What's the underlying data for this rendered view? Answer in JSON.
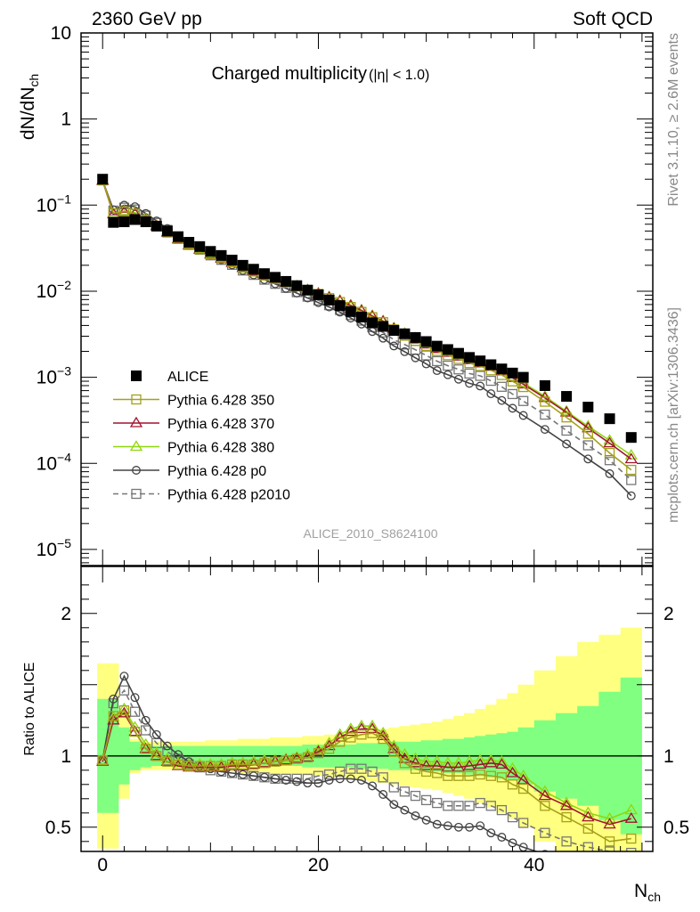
{
  "header": {
    "left": "2360 GeV pp",
    "right": "Soft QCD",
    "side_top": "Rivet 3.1.10, ≥ 2.6M events",
    "side_bottom": "mcplots.cern.ch [arXiv:1306.3436]",
    "analysis_id": "ALICE_2010_S8624100"
  },
  "main_plot": {
    "title": "Charged multiplicity",
    "title_cut": "(|η| < 1.0)",
    "ylabel": "dN/dN",
    "ylabel_sub": "ch",
    "yscale": "log",
    "ylim": [
      6.5e-06,
      10
    ],
    "yticks": [
      {
        "base": "10",
        "exp": "1",
        "plain": "10",
        "value": 10
      },
      {
        "base": "1",
        "exp": "",
        "plain": "1",
        "value": 1
      },
      {
        "base": "10",
        "exp": "−1",
        "plain": "",
        "value": 0.1
      },
      {
        "base": "10",
        "exp": "−2",
        "plain": "",
        "value": 0.01
      },
      {
        "base": "10",
        "exp": "−3",
        "plain": "",
        "value": 0.001
      },
      {
        "base": "10",
        "exp": "−4",
        "plain": "",
        "value": 0.0001
      },
      {
        "base": "10",
        "exp": "−5",
        "plain": "",
        "value": 1e-05
      }
    ]
  },
  "ratio_plot": {
    "ylabel": "Ratio to ALICE",
    "ylim": [
      0.33,
      2.33
    ],
    "yticks": [
      {
        "label": "0.5",
        "value": 0.5
      },
      {
        "label": "1",
        "value": 1
      },
      {
        "label": "2",
        "value": 2
      }
    ]
  },
  "xaxis": {
    "label": "N",
    "label_sub": "ch",
    "xlim": [
      -2,
      51
    ],
    "ticks": [
      {
        "label": "0",
        "value": 0
      },
      {
        "label": "20",
        "value": 20
      },
      {
        "label": "40",
        "value": 40
      }
    ]
  },
  "legend": {
    "placement": "lower-left",
    "entries": [
      {
        "label": "ALICE",
        "key": "alice"
      },
      {
        "label": "Pythia 6.428 350",
        "key": "p350"
      },
      {
        "label": "Pythia 6.428 370",
        "key": "p370"
      },
      {
        "label": "Pythia 6.428 380",
        "key": "p380"
      },
      {
        "label": "Pythia 6.428 p0",
        "key": "p0"
      },
      {
        "label": "Pythia 6.428 p2010",
        "key": "p2010"
      }
    ]
  },
  "chart_data": {
    "type": "scatter",
    "x": [
      0,
      1,
      2,
      3,
      4,
      5,
      6,
      7,
      8,
      9,
      10,
      11,
      12,
      13,
      14,
      15,
      16,
      17,
      18,
      19,
      20,
      21,
      22,
      23,
      24,
      25,
      26,
      27,
      28,
      29,
      30,
      31,
      32,
      33,
      34,
      35,
      36,
      37,
      38,
      39,
      41,
      43,
      45,
      47,
      49
    ],
    "band_edges": [
      -0.5,
      0.5,
      1.5,
      2.5,
      3.5,
      4.5,
      5.5,
      6.5,
      7.5,
      8.5,
      9.5,
      10.5,
      11.5,
      12.5,
      13.5,
      14.5,
      15.5,
      16.5,
      17.5,
      18.5,
      19.5,
      20.5,
      21.5,
      22.5,
      23.5,
      24.5,
      25.5,
      26.5,
      27.5,
      28.5,
      29.5,
      30.5,
      31.5,
      32.5,
      33.5,
      34.5,
      35.5,
      36.5,
      37.5,
      38.5,
      40,
      42,
      44,
      46,
      48,
      50
    ],
    "alice": [
      0.2,
      0.063,
      0.064,
      0.068,
      0.064,
      0.057,
      0.05,
      0.043,
      0.037,
      0.033,
      0.029,
      0.026,
      0.023,
      0.02,
      0.018,
      0.016,
      0.0145,
      0.013,
      0.0116,
      0.0103,
      0.0091,
      0.0079,
      0.0068,
      0.0058,
      0.005,
      0.0043,
      0.0039,
      0.0035,
      0.0032,
      0.0029,
      0.0026,
      0.0023,
      0.0021,
      0.0019,
      0.0017,
      0.00155,
      0.0014,
      0.00125,
      0.00112,
      0.001,
      0.0008,
      0.0006,
      0.00045,
      0.00033,
      0.0002
    ],
    "ratio_band_inner": [
      0.4,
      0.4,
      0.2,
      0.1,
      0.08,
      0.07,
      0.07,
      0.07,
      0.07,
      0.07,
      0.07,
      0.07,
      0.07,
      0.07,
      0.07,
      0.07,
      0.07,
      0.07,
      0.07,
      0.08,
      0.08,
      0.08,
      0.08,
      0.08,
      0.09,
      0.09,
      0.09,
      0.1,
      0.1,
      0.1,
      0.11,
      0.11,
      0.12,
      0.12,
      0.13,
      0.14,
      0.15,
      0.16,
      0.17,
      0.2,
      0.25,
      0.3,
      0.35,
      0.45,
      0.55
    ],
    "ratio_band_outer": [
      0.65,
      0.65,
      0.3,
      0.12,
      0.1,
      0.1,
      0.1,
      0.1,
      0.1,
      0.1,
      0.11,
      0.11,
      0.11,
      0.12,
      0.12,
      0.12,
      0.13,
      0.13,
      0.13,
      0.14,
      0.14,
      0.15,
      0.15,
      0.16,
      0.17,
      0.18,
      0.19,
      0.2,
      0.21,
      0.22,
      0.23,
      0.24,
      0.26,
      0.28,
      0.3,
      0.33,
      0.36,
      0.4,
      0.44,
      0.5,
      0.6,
      0.7,
      0.8,
      0.85,
      0.9
    ],
    "series": [
      {
        "name": "Pythia 6.428 350",
        "key": "p350",
        "color": "#a5a01a",
        "marker": "square-open",
        "dash": "",
        "ratio": [
          0.97,
          1.28,
          1.32,
          1.17,
          1.05,
          1.0,
          0.96,
          0.94,
          0.93,
          0.93,
          0.93,
          0.93,
          0.94,
          0.94,
          0.94,
          0.95,
          0.96,
          0.97,
          0.98,
          0.99,
          1.02,
          1.05,
          1.1,
          1.13,
          1.15,
          1.16,
          1.12,
          1.03,
          0.95,
          0.91,
          0.89,
          0.88,
          0.86,
          0.86,
          0.86,
          0.87,
          0.86,
          0.85,
          0.8,
          0.77,
          0.65,
          0.57,
          0.49,
          0.4,
          0.42
        ]
      },
      {
        "name": "Pythia 6.428 370",
        "key": "p370",
        "color": "#a0152f",
        "marker": "triangle-open",
        "dash": "",
        "ratio": [
          0.96,
          1.25,
          1.3,
          1.17,
          1.05,
          1.0,
          0.96,
          0.93,
          0.92,
          0.92,
          0.92,
          0.92,
          0.93,
          0.93,
          0.94,
          0.95,
          0.96,
          0.97,
          0.98,
          0.99,
          1.03,
          1.07,
          1.13,
          1.17,
          1.19,
          1.19,
          1.14,
          1.05,
          0.98,
          0.95,
          0.93,
          0.93,
          0.92,
          0.92,
          0.93,
          0.94,
          0.95,
          0.94,
          0.88,
          0.83,
          0.72,
          0.65,
          0.57,
          0.52,
          0.56
        ]
      },
      {
        "name": "Pythia 6.428 380",
        "key": "p380",
        "color": "#90d610",
        "marker": "triangle-open",
        "dash": "",
        "ratio": [
          0.97,
          1.27,
          1.33,
          1.2,
          1.08,
          1.02,
          0.98,
          0.95,
          0.94,
          0.94,
          0.94,
          0.94,
          0.95,
          0.95,
          0.96,
          0.97,
          0.97,
          0.98,
          0.99,
          1.01,
          1.04,
          1.09,
          1.15,
          1.19,
          1.21,
          1.21,
          1.16,
          1.07,
          1.01,
          0.98,
          0.96,
          0.96,
          0.95,
          0.95,
          0.96,
          0.97,
          0.97,
          0.96,
          0.91,
          0.86,
          0.75,
          0.67,
          0.6,
          0.56,
          0.62
        ]
      },
      {
        "name": "Pythia 6.428 p0",
        "key": "p0",
        "color": "#444444",
        "marker": "circle-open",
        "dash": "",
        "ratio": [
          0.97,
          1.4,
          1.56,
          1.41,
          1.25,
          1.15,
          1.07,
          1.01,
          0.96,
          0.93,
          0.91,
          0.89,
          0.88,
          0.87,
          0.86,
          0.85,
          0.84,
          0.83,
          0.82,
          0.81,
          0.81,
          0.83,
          0.84,
          0.84,
          0.83,
          0.79,
          0.73,
          0.66,
          0.62,
          0.58,
          0.55,
          0.52,
          0.51,
          0.5,
          0.5,
          0.51,
          0.46,
          0.43,
          0.39,
          0.36,
          0.31,
          0.28,
          0.25,
          0.23,
          0.21
        ]
      },
      {
        "name": "Pythia 6.428 p2010",
        "key": "p2010",
        "color": "#777777",
        "marker": "square-open",
        "dash": "6,4",
        "ratio": [
          0.97,
          1.37,
          1.46,
          1.31,
          1.18,
          1.09,
          1.03,
          0.98,
          0.94,
          0.92,
          0.9,
          0.89,
          0.88,
          0.87,
          0.86,
          0.85,
          0.84,
          0.84,
          0.84,
          0.84,
          0.86,
          0.87,
          0.89,
          0.91,
          0.91,
          0.89,
          0.85,
          0.78,
          0.75,
          0.72,
          0.69,
          0.67,
          0.65,
          0.65,
          0.65,
          0.67,
          0.65,
          0.62,
          0.57,
          0.53,
          0.46,
          0.4,
          0.36,
          0.33,
          0.32
        ]
      }
    ]
  }
}
